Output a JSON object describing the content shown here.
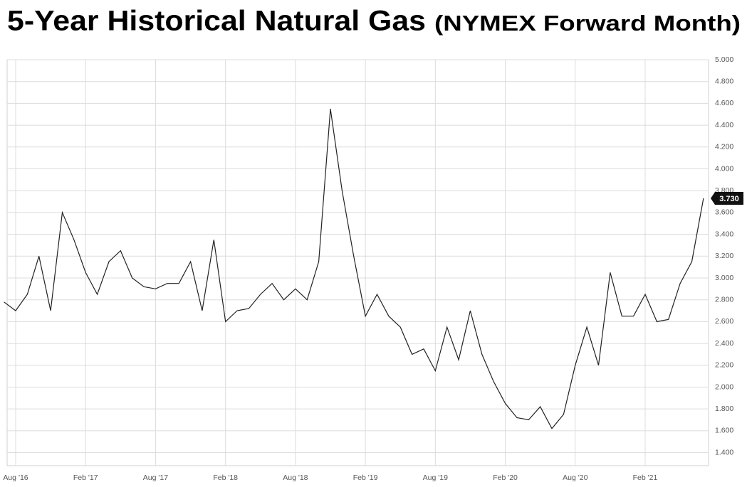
{
  "chart_data": {
    "type": "line",
    "title": "5-Year Historical Natural Gas",
    "subtitle": "(NYMEX Forward Month)",
    "x": [
      "2016-07",
      "2016-08",
      "2016-09",
      "2016-10",
      "2016-11",
      "2016-12",
      "2017-01",
      "2017-02",
      "2017-03",
      "2017-04",
      "2017-05",
      "2017-06",
      "2017-07",
      "2017-08",
      "2017-09",
      "2017-10",
      "2017-11",
      "2017-12",
      "2018-01",
      "2018-02",
      "2018-03",
      "2018-04",
      "2018-05",
      "2018-06",
      "2018-07",
      "2018-08",
      "2018-09",
      "2018-10",
      "2018-11",
      "2018-12",
      "2019-01",
      "2019-02",
      "2019-03",
      "2019-04",
      "2019-05",
      "2019-06",
      "2019-07",
      "2019-08",
      "2019-09",
      "2019-10",
      "2019-11",
      "2019-12",
      "2020-01",
      "2020-02",
      "2020-03",
      "2020-04",
      "2020-05",
      "2020-06",
      "2020-07",
      "2020-08",
      "2020-09",
      "2020-10",
      "2020-11",
      "2020-12",
      "2021-01",
      "2021-02",
      "2021-03",
      "2021-04",
      "2021-05",
      "2021-06",
      "2021-07"
    ],
    "series": [
      {
        "name": "NYMEX Forward Month",
        "color": "#222222",
        "values": [
          2.78,
          2.7,
          2.85,
          3.2,
          2.7,
          3.6,
          3.35,
          3.05,
          2.85,
          3.15,
          3.25,
          3.0,
          2.92,
          2.9,
          2.95,
          2.95,
          3.15,
          2.7,
          3.35,
          2.6,
          2.7,
          2.72,
          2.85,
          2.95,
          2.8,
          2.9,
          2.8,
          3.15,
          4.55,
          3.8,
          3.2,
          2.65,
          2.85,
          2.65,
          2.55,
          2.3,
          2.35,
          2.15,
          2.55,
          2.25,
          2.7,
          2.3,
          2.05,
          1.85,
          1.72,
          1.7,
          1.82,
          1.62,
          1.75,
          2.2,
          2.55,
          2.2,
          3.05,
          2.65,
          2.65,
          2.85,
          2.6,
          2.62,
          2.95,
          3.15,
          3.73
        ],
        "value_labels": [
          null,
          null,
          null,
          null,
          null,
          null,
          null,
          null,
          null,
          null,
          null,
          null,
          null,
          null,
          null,
          null,
          null,
          null,
          null,
          null,
          null,
          null,
          null,
          null,
          null,
          null,
          null,
          null,
          null,
          null,
          null,
          null,
          null,
          null,
          null,
          null,
          null,
          null,
          null,
          null,
          null,
          null,
          null,
          null,
          null,
          null,
          null,
          null,
          null,
          null,
          null,
          null,
          null,
          null,
          null,
          null,
          null,
          null,
          null,
          null,
          "3.730"
        ]
      }
    ],
    "xticks": [
      {
        "value": "2016-08",
        "label": "Aug '16"
      },
      {
        "value": "2017-02",
        "label": "Feb '17"
      },
      {
        "value": "2017-08",
        "label": "Aug '17"
      },
      {
        "value": "2018-02",
        "label": "Feb '18"
      },
      {
        "value": "2018-08",
        "label": "Aug '18"
      },
      {
        "value": "2019-02",
        "label": "Feb '19"
      },
      {
        "value": "2019-08",
        "label": "Aug '19"
      },
      {
        "value": "2020-02",
        "label": "Feb '20"
      },
      {
        "value": "2020-08",
        "label": "Aug '20"
      },
      {
        "value": "2021-02",
        "label": "Feb '21"
      }
    ],
    "ylim": [
      1.28,
      5.0
    ],
    "yticks": [
      {
        "value": 1.4,
        "label": "1.400"
      },
      {
        "value": 1.6,
        "label": "1.600"
      },
      {
        "value": 1.8,
        "label": "1.800"
      },
      {
        "value": 2.0,
        "label": "2.000"
      },
      {
        "value": 2.2,
        "label": "2.200"
      },
      {
        "value": 2.4,
        "label": "2.400"
      },
      {
        "value": 2.6,
        "label": "2.600"
      },
      {
        "value": 2.8,
        "label": "2.800"
      },
      {
        "value": 3.0,
        "label": "3.000"
      },
      {
        "value": 3.2,
        "label": "3.200"
      },
      {
        "value": 3.4,
        "label": "3.400"
      },
      {
        "value": 3.6,
        "label": "3.600"
      },
      {
        "value": 3.8,
        "label": "3.800"
      },
      {
        "value": 4.0,
        "label": "4.000"
      },
      {
        "value": 4.2,
        "label": "4.200"
      },
      {
        "value": 4.4,
        "label": "4.400"
      },
      {
        "value": 4.6,
        "label": "4.600"
      },
      {
        "value": 4.8,
        "label": "4.800"
      },
      {
        "value": 5.0,
        "label": "5.000"
      }
    ],
    "grid": true
  }
}
